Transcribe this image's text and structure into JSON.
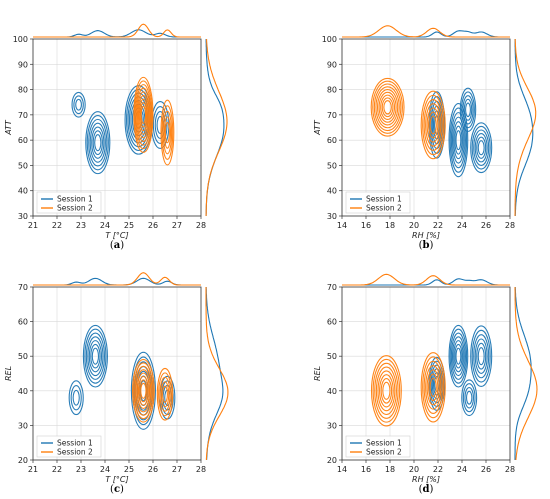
{
  "colors": {
    "session1": "#1f77b4",
    "session2": "#ff7f0e",
    "grid": "#d9d9d9",
    "axis": "#333333"
  },
  "chart_data": [
    {
      "panel": "a",
      "type": "kde-contour",
      "caption": [
        "(",
        "a",
        ")"
      ],
      "xlabel": "T [°C]",
      "ylabel": "ATT",
      "xlim": [
        21,
        28
      ],
      "ylim": [
        30,
        100
      ],
      "xticks": [
        "21",
        "22",
        "23",
        "24",
        "25",
        "26",
        "27",
        "28"
      ],
      "yticks": [
        "30",
        "40",
        "50",
        "60",
        "70",
        "80",
        "90",
        "100"
      ],
      "grid": true,
      "legend_placement": "bottom-left",
      "series": [
        {
          "name": "Session 1",
          "blobs": [
            {
              "x": 23.7,
              "y": 59,
              "sx": 0.45,
              "sy": 11,
              "n": 7
            },
            {
              "x": 22.9,
              "y": 74,
              "sx": 0.28,
              "sy": 5,
              "n": 3
            },
            {
              "x": 25.4,
              "y": 68,
              "sx": 0.5,
              "sy": 12,
              "n": 8
            },
            {
              "x": 26.3,
              "y": 66,
              "sx": 0.35,
              "sy": 9,
              "n": 4
            }
          ]
        },
        {
          "name": "Session 2",
          "blobs": [
            {
              "x": 25.6,
              "y": 70,
              "sx": 0.35,
              "sy": 13,
              "n": 9
            },
            {
              "x": 26.6,
              "y": 63,
              "sx": 0.25,
              "sy": 12,
              "n": 5
            }
          ]
        }
      ]
    },
    {
      "panel": "b",
      "type": "kde-contour",
      "caption": [
        "(",
        "b",
        ")"
      ],
      "xlabel": "RH [%]",
      "ylabel": "ATT",
      "xlim": [
        14,
        28
      ],
      "ylim": [
        30,
        100
      ],
      "xticks": [
        "14",
        "16",
        "18",
        "20",
        "22",
        "24",
        "26",
        "28"
      ],
      "yticks": [
        "30",
        "40",
        "50",
        "60",
        "70",
        "80",
        "90",
        "100"
      ],
      "grid": true,
      "legend_placement": "bottom-left",
      "series": [
        {
          "name": "Session 1",
          "blobs": [
            {
              "x": 21.9,
              "y": 66,
              "sx": 0.6,
              "sy": 12,
              "n": 6
            },
            {
              "x": 23.7,
              "y": 60,
              "sx": 0.7,
              "sy": 13,
              "n": 7
            },
            {
              "x": 24.5,
              "y": 72,
              "sx": 0.6,
              "sy": 8,
              "n": 5
            },
            {
              "x": 25.6,
              "y": 57,
              "sx": 0.8,
              "sy": 9,
              "n": 6
            }
          ]
        },
        {
          "name": "Session 2",
          "blobs": [
            {
              "x": 17.8,
              "y": 73,
              "sx": 1.2,
              "sy": 10,
              "n": 9
            },
            {
              "x": 21.6,
              "y": 66,
              "sx": 0.9,
              "sy": 12,
              "n": 7
            }
          ]
        }
      ]
    },
    {
      "panel": "c",
      "type": "kde-contour",
      "caption": [
        "(",
        "c",
        ")"
      ],
      "xlabel": "T [°C]",
      "ylabel": "REL",
      "xlim": [
        21,
        28
      ],
      "ylim": [
        20,
        70
      ],
      "xticks": [
        "21",
        "22",
        "23",
        "24",
        "25",
        "26",
        "27",
        "28"
      ],
      "yticks": [
        "20",
        "30",
        "40",
        "50",
        "60",
        "70"
      ],
      "grid": true,
      "legend_placement": "bottom-left",
      "series": [
        {
          "name": "Session 1",
          "blobs": [
            {
              "x": 23.6,
              "y": 50,
              "sx": 0.45,
              "sy": 8,
              "n": 7
            },
            {
              "x": 22.8,
              "y": 38,
              "sx": 0.3,
              "sy": 5,
              "n": 3
            },
            {
              "x": 25.6,
              "y": 40,
              "sx": 0.45,
              "sy": 10,
              "n": 7
            },
            {
              "x": 26.6,
              "y": 38,
              "sx": 0.3,
              "sy": 6,
              "n": 4
            }
          ]
        },
        {
          "name": "Session 2",
          "blobs": [
            {
              "x": 25.6,
              "y": 40,
              "sx": 0.4,
              "sy": 8,
              "n": 8
            },
            {
              "x": 26.5,
              "y": 39,
              "sx": 0.3,
              "sy": 7,
              "n": 5
            }
          ]
        }
      ]
    },
    {
      "panel": "d",
      "type": "kde-contour",
      "caption": [
        "(",
        "d",
        ")"
      ],
      "xlabel": "RH [%]",
      "ylabel": "REL",
      "xlim": [
        14,
        28
      ],
      "ylim": [
        20,
        70
      ],
      "xticks": [
        "14",
        "16",
        "18",
        "20",
        "22",
        "24",
        "26",
        "28"
      ],
      "yticks": [
        "20",
        "30",
        "40",
        "50",
        "60",
        "70"
      ],
      "grid": true,
      "legend_placement": "bottom-left",
      "series": [
        {
          "name": "Session 1",
          "blobs": [
            {
              "x": 21.9,
              "y": 42,
              "sx": 0.6,
              "sy": 7,
              "n": 6
            },
            {
              "x": 23.7,
              "y": 50,
              "sx": 0.7,
              "sy": 8,
              "n": 7
            },
            {
              "x": 24.6,
              "y": 38,
              "sx": 0.6,
              "sy": 5,
              "n": 4
            },
            {
              "x": 25.6,
              "y": 50,
              "sx": 0.8,
              "sy": 8,
              "n": 6
            }
          ]
        },
        {
          "name": "Session 2",
          "blobs": [
            {
              "x": 17.7,
              "y": 40,
              "sx": 1.1,
              "sy": 9,
              "n": 8
            },
            {
              "x": 21.6,
              "y": 41,
              "sx": 0.9,
              "sy": 9,
              "n": 7
            }
          ]
        }
      ]
    }
  ]
}
